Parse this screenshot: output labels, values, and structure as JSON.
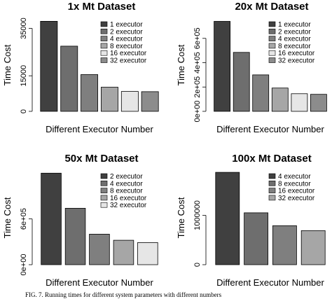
{
  "chart_data": [
    {
      "type": "bar",
      "title": "1x Mt Dataset",
      "xlabel": "Different Executor Number",
      "ylabel": "Time Cost",
      "categories": [
        "1 executor",
        "2 executor",
        "4 executor",
        "8 executor",
        "16 executor",
        "32 executor"
      ],
      "values": [
        38000,
        27500,
        15500,
        10200,
        8400,
        8300
      ],
      "ylim": [
        0,
        39000
      ],
      "yticks": [
        0,
        15000,
        35000
      ],
      "ytick_labels": [
        "0",
        "15000",
        "35000"
      ],
      "colors": [
        "#404040",
        "#6e6e6e",
        "#7f7f7f",
        "#a6a6a6",
        "#e6e6e6",
        "#8c8c8c"
      ],
      "legend": "top-right"
    },
    {
      "type": "bar",
      "title": "20x Mt Dataset",
      "xlabel": "Different Executor Number",
      "ylabel": "Time Cost",
      "categories": [
        "1 executor",
        "2 executor",
        "4 executor",
        "8 executor",
        "16 executor",
        "32 executor"
      ],
      "values": [
        740000,
        485000,
        300000,
        192000,
        145000,
        140000
      ],
      "ylim": [
        0,
        760000
      ],
      "yticks": [
        0,
        200000,
        400000,
        600000
      ],
      "ytick_labels": [
        "0e+00",
        "2e+05",
        "4e+05",
        "6e+05"
      ],
      "colors": [
        "#404040",
        "#6e6e6e",
        "#7f7f7f",
        "#a6a6a6",
        "#e6e6e6",
        "#8c8c8c"
      ],
      "legend": "top-right"
    },
    {
      "type": "bar",
      "title": "50x Mt Dataset",
      "xlabel": "Different Executor Number",
      "ylabel": "Time Cost",
      "categories": [
        "2 executor",
        "4 executor",
        "8 executor",
        "16 executor",
        "32 executor"
      ],
      "values": [
        1200000,
        740000,
        400000,
        320000,
        290000
      ],
      "ylim": [
        0,
        1230000
      ],
      "yticks": [
        0,
        600000
      ],
      "ytick_labels": [
        "0e+00",
        "6e+05"
      ],
      "colors": [
        "#404040",
        "#6e6e6e",
        "#7f7f7f",
        "#a6a6a6",
        "#e6e6e6"
      ],
      "legend": "top-right"
    },
    {
      "type": "bar",
      "title": "100x Mt Dataset",
      "xlabel": "Different Executor Number",
      "ylabel": "Time Cost",
      "categories": [
        "4 executor",
        "8 executor",
        "16 executor",
        "32 executor"
      ],
      "values": [
        1870000,
        1050000,
        790000,
        690000
      ],
      "ylim": [
        0,
        1900000
      ],
      "yticks": [
        0,
        1000000
      ],
      "ytick_labels": [
        "0",
        "1000000"
      ],
      "colors": [
        "#404040",
        "#6e6e6e",
        "#7f7f7f",
        "#a6a6a6"
      ],
      "legend": "top-right"
    }
  ],
  "caption": "FIG. 7.   Running times for different system parameters with different numbers"
}
